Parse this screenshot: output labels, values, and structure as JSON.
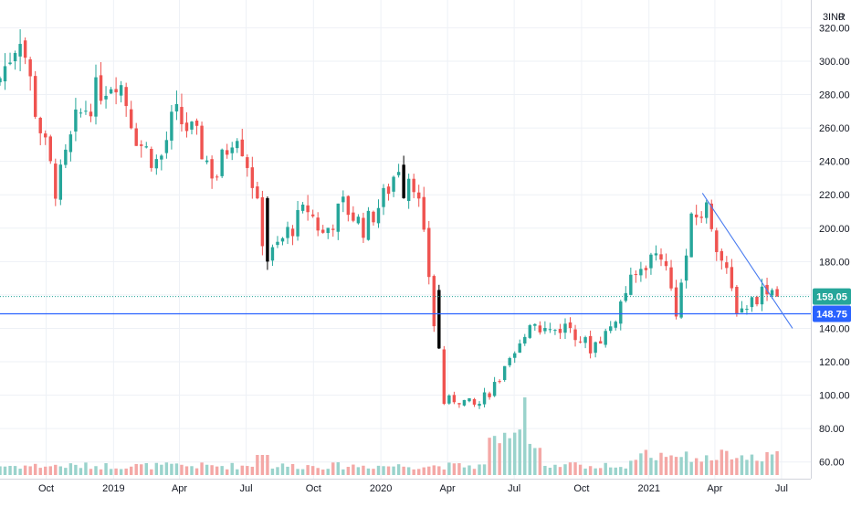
{
  "header": {
    "currency_label": "INR",
    "scale_prefix": "3",
    "scale_suffix": "0"
  },
  "colors": {
    "up": "#26a69a",
    "down": "#ef5350",
    "black": "#000000",
    "trendline": "#4a7cf0",
    "support_line": "#2962ff",
    "price_badge": "#26a69a",
    "support_badge": "#2962ff",
    "grid": "#eef1f6",
    "vol_up": "#9ad3cc",
    "vol_down": "#f4a8a6"
  },
  "chart_data": {
    "type": "candlestick",
    "title": "",
    "xlabel": "",
    "ylabel": "",
    "ylim": [
      50,
      335
    ],
    "y_ticks": [
      60,
      80,
      100,
      120,
      140,
      160,
      180,
      200,
      220,
      240,
      260,
      280,
      300,
      320
    ],
    "y_tick_labels": [
      "60.00",
      "80.00",
      "100.00",
      "120.00",
      "140.00",
      "160.00",
      "180.00",
      "200.00",
      "220.00",
      "240.00",
      "260.00",
      "280.00",
      "300.00",
      "320.00"
    ],
    "x_range": [
      "2018-07-30",
      "2021-08-10"
    ],
    "x_ticks": [
      "2018-10-01",
      "2019-01-01",
      "2019-04-01",
      "2019-07-01",
      "2019-10-01",
      "2020-01-01",
      "2020-04-01",
      "2020-07-01",
      "2020-10-01",
      "2021-01-01",
      "2021-04-01",
      "2021-07-01"
    ],
    "x_tick_labels": [
      "Oct",
      "2019",
      "Apr",
      "Jul",
      "Oct",
      "2020",
      "Apr",
      "Jul",
      "Oct",
      "2021",
      "Apr",
      "Jul"
    ],
    "grid": true,
    "last_price": 159.05,
    "last_price_label": "159.05",
    "support_level": 148.75,
    "support_label": "148.75",
    "trendline": [
      {
        "date": "2021-03-15",
        "value": 221
      },
      {
        "date": "2021-07-16",
        "value": 140
      }
    ],
    "path": [
      [
        "2018-07-30",
        290
      ],
      [
        "2018-08-27",
        318
      ],
      [
        "2018-09-17",
        270
      ],
      [
        "2018-10-15",
        222
      ],
      [
        "2018-11-12",
        265
      ],
      [
        "2018-12-10",
        282
      ],
      [
        "2019-01-07",
        292
      ],
      [
        "2019-02-04",
        252
      ],
      [
        "2019-03-04",
        238
      ],
      [
        "2019-03-25",
        268
      ],
      [
        "2019-04-22",
        255
      ],
      [
        "2019-05-20",
        230
      ],
      [
        "2019-06-17",
        262
      ],
      [
        "2019-07-08",
        232
      ],
      [
        "2019-07-29",
        180
      ],
      [
        "2019-08-26",
        197
      ],
      [
        "2019-09-23",
        212
      ],
      [
        "2019-10-14",
        196
      ],
      [
        "2019-11-11",
        214
      ],
      [
        "2019-12-09",
        200
      ],
      [
        "2020-01-06",
        219
      ],
      [
        "2020-01-27",
        240
      ],
      [
        "2020-02-17",
        228
      ],
      [
        "2020-03-09",
        165
      ],
      [
        "2020-03-23",
        95
      ],
      [
        "2020-04-13",
        98
      ],
      [
        "2020-05-11",
        93
      ],
      [
        "2020-06-08",
        108
      ],
      [
        "2020-07-06",
        125
      ],
      [
        "2020-07-20",
        145
      ],
      [
        "2020-08-17",
        138
      ],
      [
        "2020-09-14",
        142
      ],
      [
        "2020-10-12",
        128
      ],
      [
        "2020-11-09",
        140
      ],
      [
        "2020-11-30",
        162
      ],
      [
        "2020-12-28",
        180
      ],
      [
        "2021-01-18",
        186
      ],
      [
        "2021-02-08",
        150
      ],
      [
        "2021-03-01",
        205
      ],
      [
        "2021-03-22",
        212
      ],
      [
        "2021-04-12",
        178
      ],
      [
        "2021-05-03",
        150
      ],
      [
        "2021-05-24",
        158
      ],
      [
        "2021-06-14",
        166
      ],
      [
        "2021-06-25",
        159.05
      ]
    ],
    "thick_black_bars": [
      {
        "date": "2019-07-29",
        "open": 218,
        "close": 180
      },
      {
        "date": "2020-01-31",
        "open": 238,
        "close": 218
      },
      {
        "date": "2020-03-23",
        "open": 163,
        "close": 128
      }
    ],
    "volume_surge": {
      "start": "2020-05-25",
      "end": "2020-08-10",
      "peak": "2020-07-13"
    },
    "num_candles": 155
  }
}
